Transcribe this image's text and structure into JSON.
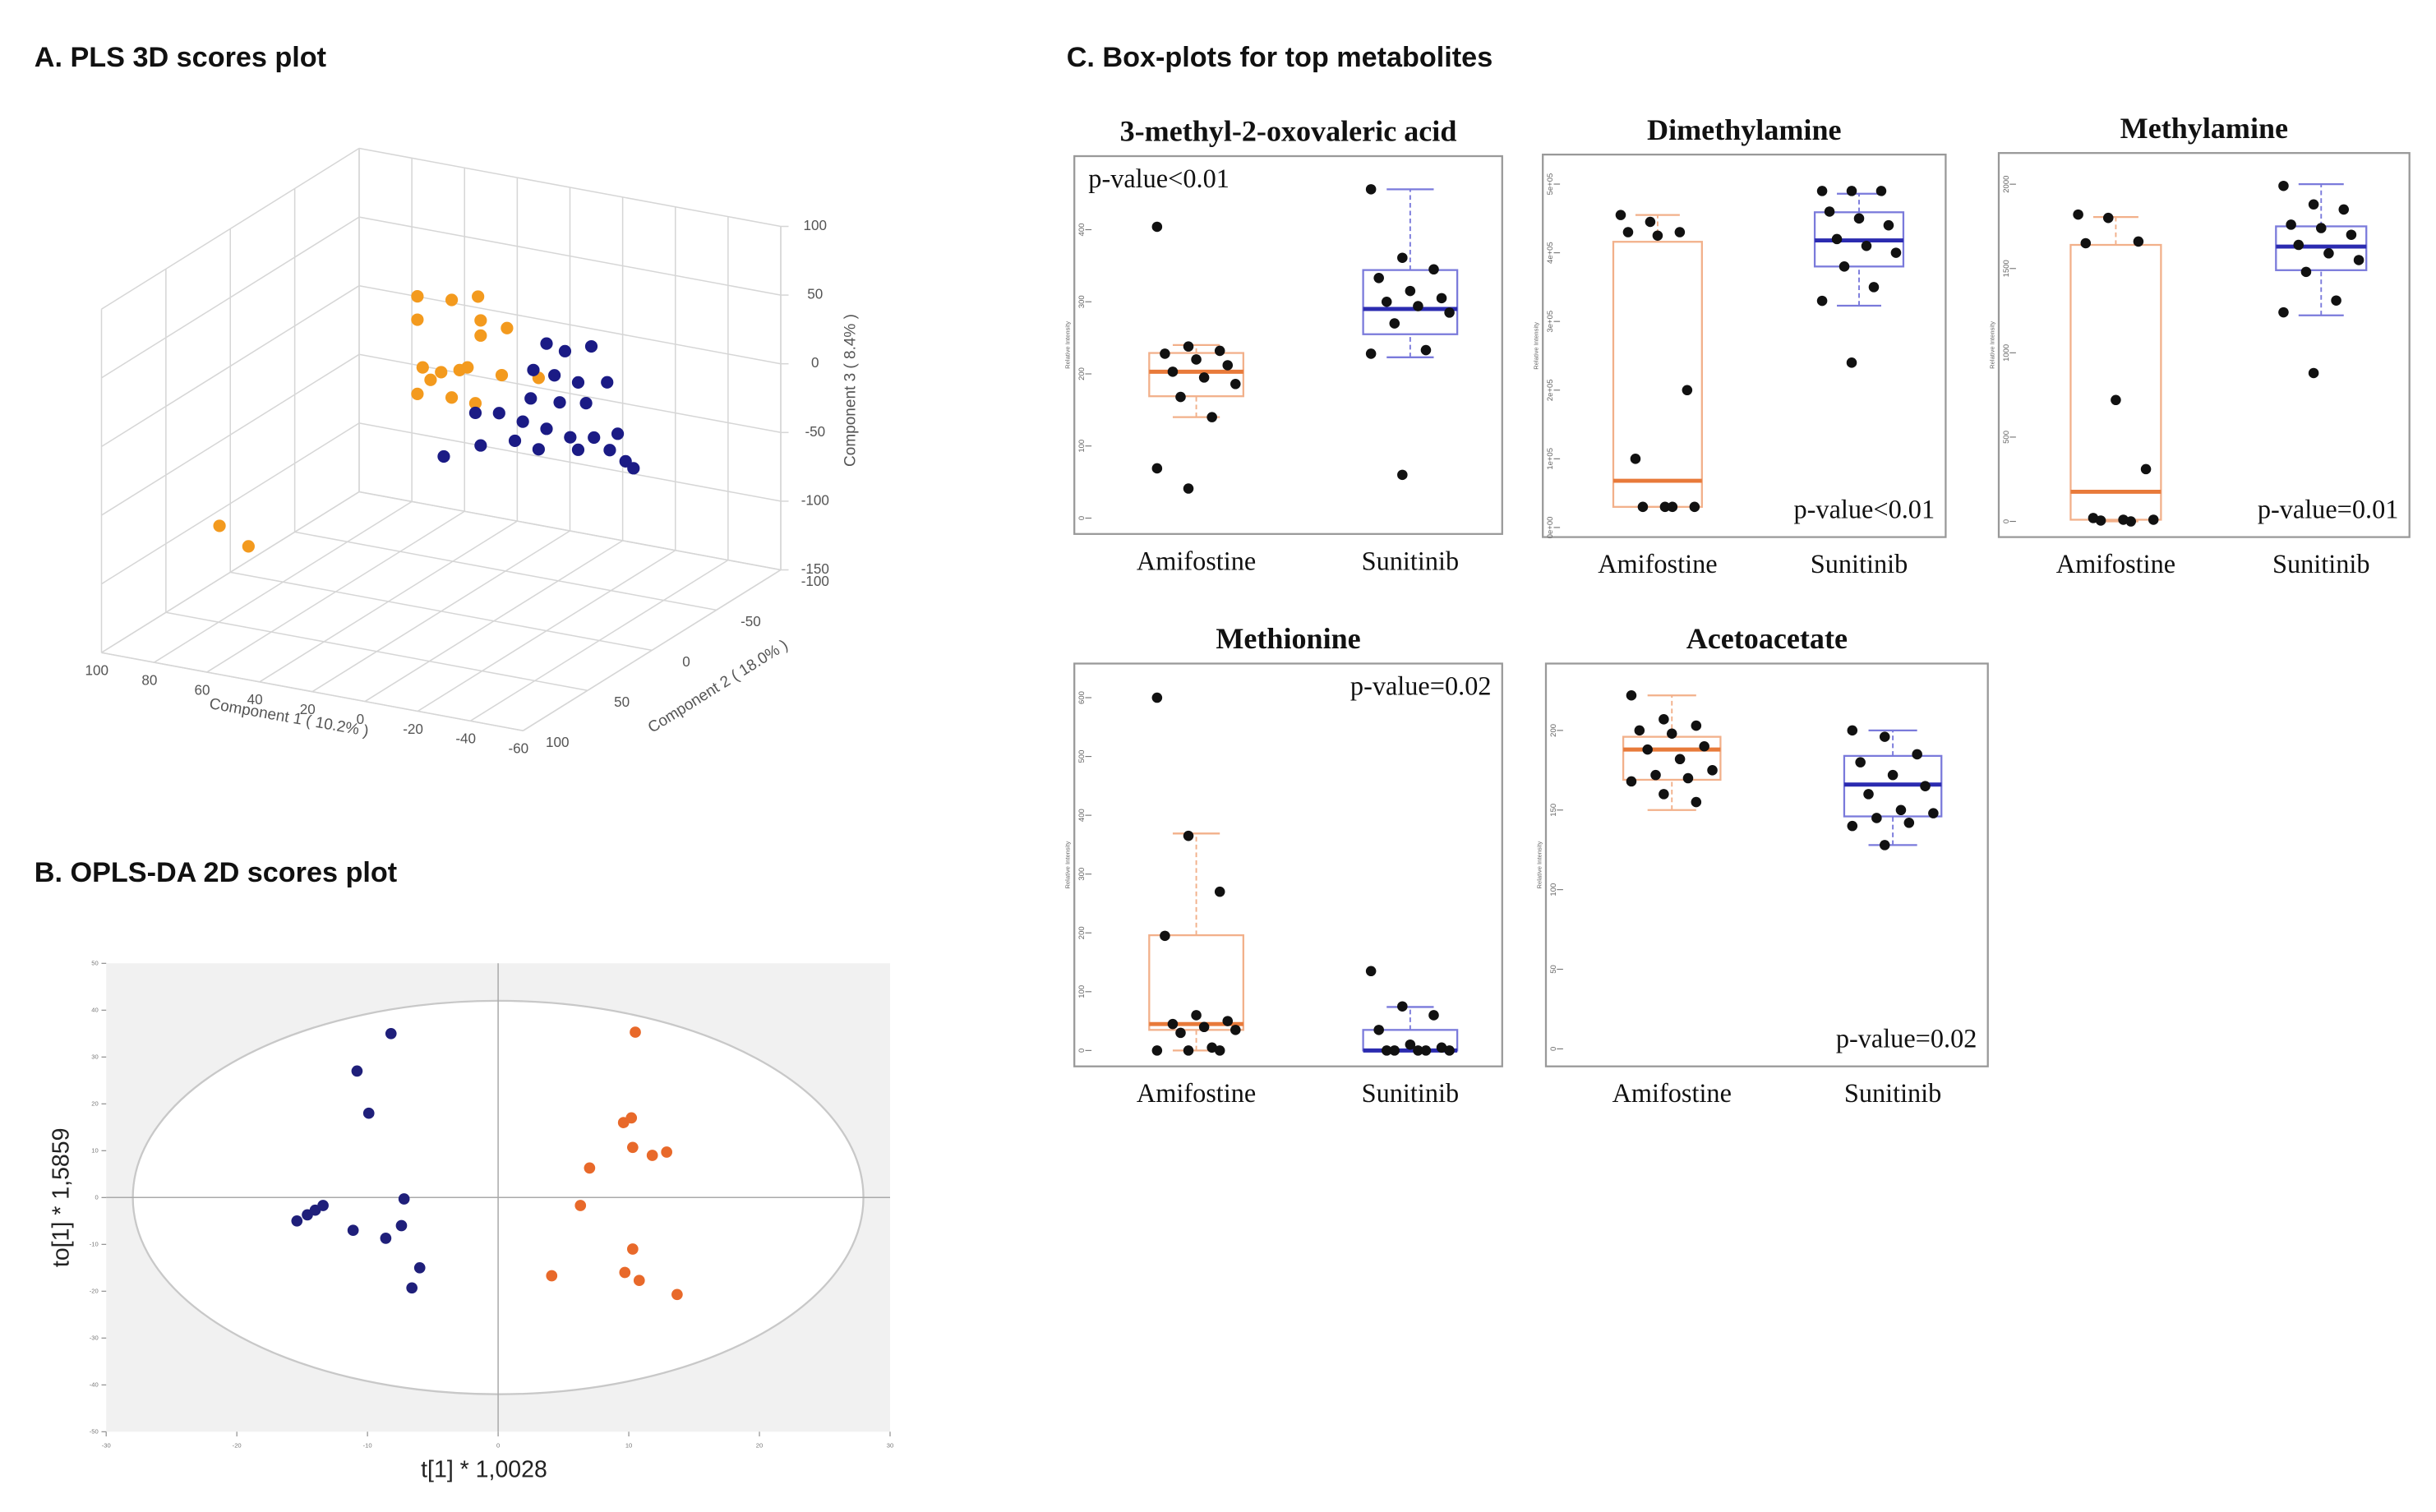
{
  "figure_labels": [
    "A. PLS 3D scores plot",
    "B. OPLS-DA 2D scores plot",
    "C. Box-plots for top metabolites"
  ],
  "chart_data": [
    {
      "type": "scatter3d",
      "xlabel": "Component 1 ( 10.2% )",
      "ylabel": "Component 2 ( 18.0% )",
      "zlabel": "Component 3 ( 8.4% )",
      "xlim": [
        100,
        -60
      ],
      "ylim": [
        -100,
        100
      ],
      "zlim": [
        -150,
        100
      ],
      "xticks": [
        100,
        80,
        60,
        40,
        20,
        0,
        -20,
        -40,
        -60
      ],
      "yticks": [
        -100,
        -50,
        0,
        50,
        100
      ],
      "zticks": [
        -150,
        -100,
        -50,
        0,
        50,
        100
      ],
      "grid": true,
      "series": [
        {
          "color": "#f39a1e",
          "x": [
            29,
            16,
            6,
            29,
            5,
            -5,
            5,
            27,
            20,
            13,
            10,
            24,
            29,
            16,
            7,
            -3,
            -17,
            65,
            54
          ],
          "y": [
            0,
            0,
            0,
            0,
            0,
            0,
            0,
            0,
            0,
            0,
            0,
            0,
            0,
            0,
            0,
            0,
            0,
            80,
            80
          ],
          "z": [
            76,
            78,
            84,
            59,
            67,
            65,
            56,
            25,
            24,
            28,
            31,
            17,
            5,
            7,
            6,
            30,
            33,
            -57,
            -68
          ]
        },
        {
          "color": "#1b1b85",
          "x": [
            -20,
            -27,
            -37,
            -15,
            -23,
            -32,
            -43,
            -14,
            -25,
            -35,
            -2,
            7,
            -11,
            -20,
            -29,
            -38,
            -47,
            -50,
            -53,
            -44,
            19,
            5,
            -8,
            -17,
            -32
          ],
          "y": [
            0,
            0,
            0,
            0,
            0,
            0,
            0,
            0,
            0,
            0,
            0,
            0,
            0,
            0,
            0,
            0,
            0,
            0,
            0,
            0,
            0,
            0,
            0,
            0,
            0
          ],
          "z": [
            59,
            56,
            63,
            38,
            37,
            35,
            39,
            17,
            18,
            21,
            2,
            -1,
            -1,
            -3,
            -6,
            -3,
            3,
            -16,
            -20,
            -10,
            -37,
            -24,
            -16,
            -19,
            -14
          ]
        }
      ]
    },
    {
      "type": "scatter",
      "xlabel": "t[1] * 1,0028",
      "ylabel": "to[1] * 1,5859",
      "xlim": [
        -30,
        30
      ],
      "ylim": [
        -50,
        50
      ],
      "xticks": [
        -30,
        -20,
        -10,
        0,
        10,
        20,
        30
      ],
      "yticks": [
        -50,
        -40,
        -30,
        -20,
        -10,
        0,
        10,
        20,
        30,
        40,
        50
      ],
      "series": [
        {
          "color": "#1f1f7a",
          "x": [
            -8.2,
            -10.8,
            -9.9,
            -15.4,
            -14.6,
            -14,
            -13.4,
            -11.1,
            -8.6,
            -7.4,
            -7.2,
            -6,
            -6.6
          ],
          "y": [
            35,
            27,
            18,
            -5,
            -3.7,
            -2.7,
            -1.7,
            -7,
            -8.7,
            -6,
            -0.3,
            -15,
            -19.3
          ]
        },
        {
          "color": "#e8692a",
          "x": [
            10.5,
            9.6,
            10.2,
            10.3,
            11.8,
            12.9,
            7,
            6.3,
            10.3,
            9.7,
            10.8,
            4.1,
            13.7
          ],
          "y": [
            35.3,
            16,
            17,
            10.7,
            9,
            9.7,
            6.3,
            -1.7,
            -11,
            -16,
            -17.7,
            -16.7,
            -20.7
          ]
        }
      ]
    },
    {
      "type": "box",
      "title": "3-methyl-2-oxovaleric acid",
      "categories": [
        "Amifostine",
        "Sunitinib"
      ],
      "annotation": "p-value<0.01",
      "annotation_corner": "top-left",
      "ylabel": "Relative Intensity",
      "ylim": [
        -22,
        502
      ],
      "yticks": [
        0,
        100,
        200,
        300,
        400
      ],
      "boxes": [
        {
          "color": "#f2b08a",
          "median_color": "#e87a3a",
          "whislo": 140,
          "q1": 169,
          "med": 203,
          "q3": 229,
          "whishi": 240,
          "points": [
            404,
            238,
            232,
            228,
            220,
            212,
            203,
            195,
            186,
            168,
            140,
            69,
            41
          ]
        },
        {
          "color": "#7a7adb",
          "median_color": "#2b2bb0",
          "whislo": 223,
          "q1": 255,
          "med": 290,
          "q3": 344,
          "whishi": 456,
          "points": [
            456,
            361,
            345,
            333,
            315,
            305,
            300,
            294,
            285,
            270,
            233,
            228,
            60
          ]
        }
      ]
    },
    {
      "type": "box",
      "title": "Dimethylamine",
      "categories": [
        "Amifostine",
        "Sunitinib"
      ],
      "annotation": "p-value<0.01",
      "annotation_corner": "bottom-right",
      "ylabel": "Relative Intensity",
      "ylim": [
        -14000,
        543000
      ],
      "yticks": [
        {
          "value": 0,
          "label": "0e+00"
        },
        {
          "value": 100000,
          "label": "1e+05"
        },
        {
          "value": 200000,
          "label": "2e+05"
        },
        {
          "value": 300000,
          "label": "3e+05"
        },
        {
          "value": 400000,
          "label": "4e+05"
        },
        {
          "value": 500000,
          "label": "5e+05"
        }
      ],
      "boxes": [
        {
          "color": "#f2b08a",
          "median_color": "#e87a3a",
          "whislo": 30000,
          "q1": 30000,
          "med": 68000,
          "q3": 416000,
          "whishi": 455000,
          "points": [
            455000,
            445000,
            430000,
            430000,
            425000,
            200000,
            100000,
            30000,
            30000,
            30000,
            30000
          ]
        },
        {
          "color": "#7a7adb",
          "median_color": "#2b2bb0",
          "whislo": 323000,
          "q1": 380000,
          "med": 418000,
          "q3": 459000,
          "whishi": 486000,
          "points": [
            490000,
            490000,
            490000,
            460000,
            450000,
            440000,
            420000,
            410000,
            400000,
            380000,
            350000,
            330000,
            240000
          ]
        }
      ]
    },
    {
      "type": "box",
      "title": "Methylamine",
      "categories": [
        "Amifostine",
        "Sunitinib"
      ],
      "annotation": "p-value=0.01",
      "annotation_corner": "bottom-right",
      "ylabel": "Relative Intensity",
      "ylim": [
        -93,
        2185
      ],
      "yticks": [
        0,
        500,
        1000,
        1500,
        2000
      ],
      "boxes": [
        {
          "color": "#f2b08a",
          "median_color": "#e87a3a",
          "whislo": 0,
          "q1": 10,
          "med": 176,
          "q3": 1640,
          "whishi": 1805,
          "points": [
            1820,
            1800,
            1660,
            1650,
            720,
            310,
            20,
            10,
            10,
            5,
            0
          ]
        },
        {
          "color": "#7a7adb",
          "median_color": "#2b2bb0",
          "whislo": 1222,
          "q1": 1490,
          "med": 1630,
          "q3": 1750,
          "whishi": 2000,
          "points": [
            1990,
            1880,
            1850,
            1760,
            1740,
            1700,
            1640,
            1590,
            1550,
            1480,
            1310,
            1240,
            880
          ]
        }
      ]
    },
    {
      "type": "box",
      "title": "Methionine",
      "categories": [
        "Amifostine",
        "Sunitinib"
      ],
      "annotation": "p-value=0.02",
      "annotation_corner": "top-right",
      "ylabel": "Relative Intensity",
      "ylim": [
        -27,
        658
      ],
      "yticks": [
        0,
        100,
        200,
        300,
        400,
        500,
        600
      ],
      "boxes": [
        {
          "color": "#f2b08a",
          "median_color": "#e87a3a",
          "whislo": 0,
          "q1": 35,
          "med": 45,
          "q3": 196,
          "whishi": 369,
          "points": [
            600,
            365,
            270,
            195,
            60,
            50,
            45,
            40,
            35,
            30,
            5,
            0,
            0,
            0
          ]
        },
        {
          "color": "#7a7adb",
          "median_color": "#2b2bb0",
          "whislo": 0,
          "q1": 0,
          "med": 0,
          "q3": 35,
          "whishi": 74,
          "points": [
            135,
            75,
            60,
            35,
            10,
            5,
            0,
            0,
            0,
            0,
            0
          ]
        }
      ]
    },
    {
      "type": "box",
      "title": "Acetoacetate",
      "categories": [
        "Amifostine",
        "Sunitinib"
      ],
      "annotation": "p-value=0.02",
      "annotation_corner": "bottom-right",
      "ylabel": "Relative Intensity",
      "ylim": [
        -11,
        242
      ],
      "yticks": [
        0,
        50,
        100,
        150,
        200
      ],
      "boxes": [
        {
          "color": "#f2b08a",
          "median_color": "#e87a3a",
          "whislo": 150,
          "q1": 169,
          "med": 188,
          "q3": 196,
          "whishi": 222,
          "points": [
            222,
            207,
            203,
            200,
            198,
            190,
            188,
            182,
            175,
            172,
            170,
            168,
            160,
            155
          ]
        },
        {
          "color": "#7a7adb",
          "median_color": "#2b2bb0",
          "whislo": 128,
          "q1": 146,
          "med": 166,
          "q3": 184,
          "whishi": 200,
          "points": [
            200,
            196,
            185,
            180,
            172,
            165,
            160,
            150,
            148,
            145,
            142,
            140,
            128
          ]
        }
      ]
    }
  ]
}
